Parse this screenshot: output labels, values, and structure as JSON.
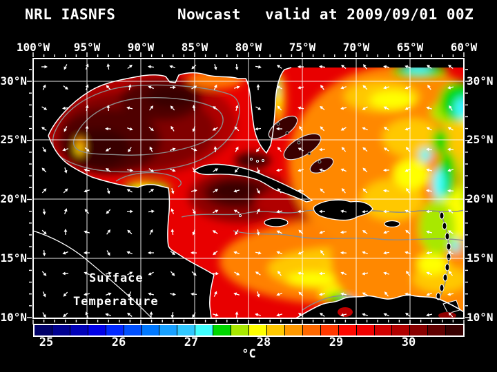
{
  "title": {
    "product": "NRL IASNFS",
    "mode": "Nowcast",
    "valid": "valid at 2009/09/01 00Z"
  },
  "axes": {
    "lon_labels": [
      "100°W",
      "95°W",
      "90°W",
      "85°W",
      "80°W",
      "75°W",
      "70°W",
      "65°W",
      "60°W"
    ],
    "lat_labels": [
      "30°N",
      "25°N",
      "20°N",
      "15°N",
      "10°N"
    ]
  },
  "map_overlay": {
    "line1": "Surface",
    "line2": "Temperature"
  },
  "colorbar": {
    "unit": "°C",
    "tick_labels": [
      "25",
      "26",
      "27",
      "28",
      "29",
      "30"
    ],
    "range": {
      "min": 24.8,
      "max": 30.8,
      "step": 0.25
    },
    "cell_colors": [
      "#000068",
      "#000090",
      "#0000B8",
      "#0000E8",
      "#0028FF",
      "#0050FF",
      "#0078FF",
      "#18A0FF",
      "#30C8FF",
      "#40FFFF",
      "#00D800",
      "#A8E800",
      "#FFFF00",
      "#FFC800",
      "#FF9800",
      "#FF6800",
      "#FF3800",
      "#FF0800",
      "#F00000",
      "#D00000",
      "#B00000",
      "#880000",
      "#600000",
      "#380000"
    ]
  },
  "colors": {
    "background": "#000000",
    "land": "#000000",
    "frame": "#FFFFFF",
    "grid": "#FFFFFF",
    "coastline": "#FFFFFF",
    "contour": "#8C8C8C",
    "vectors": "#FFFFFF",
    "ocean_base": "#E80000",
    "text": "#FFFFFF"
  }
}
